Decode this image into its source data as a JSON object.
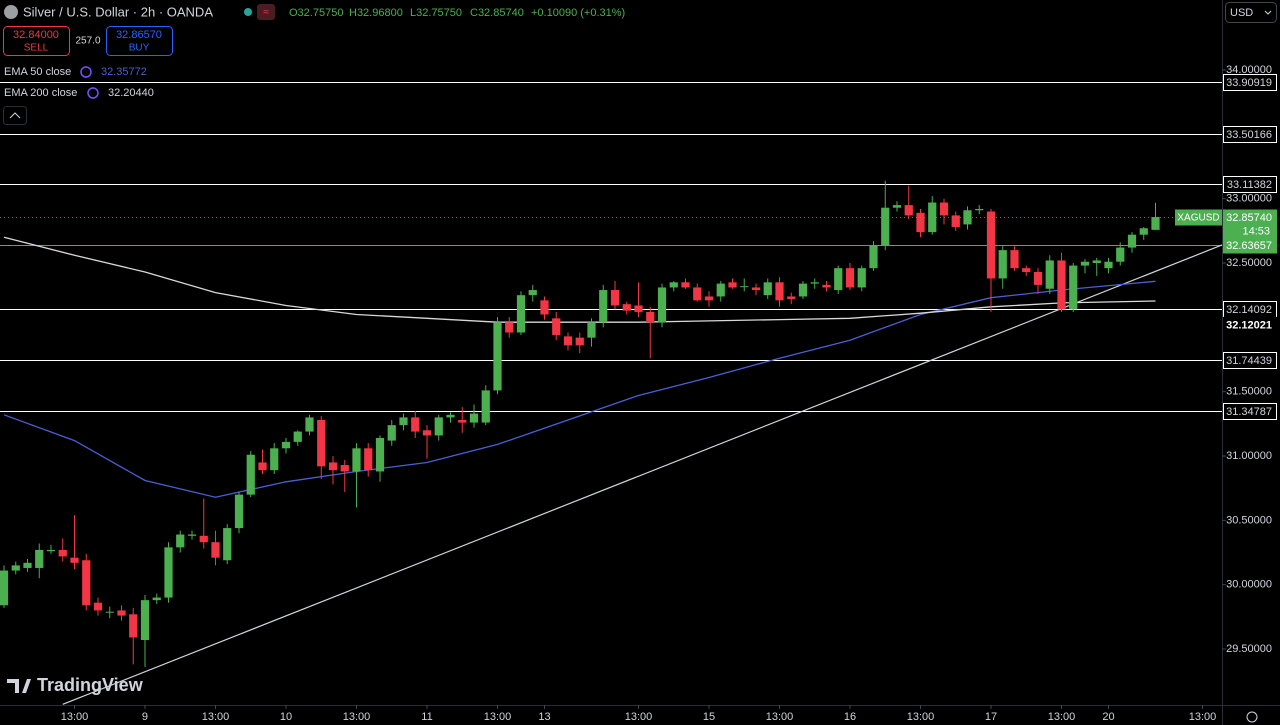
{
  "header": {
    "title": "Silver / U.S. Dollar · 2h · OANDA",
    "open": "O32.75750",
    "high": "H32.96800",
    "low": "L32.75750",
    "close": "C32.85740",
    "change": "+0.10090 (+0.31%)"
  },
  "trade": {
    "sell_price": "32.84000",
    "sell": "SELL",
    "spread": "257.0",
    "buy_price": "32.86570",
    "buy": "BUY"
  },
  "currency": "USD",
  "brand": "TradingView",
  "chart_data": {
    "type": "candlestick",
    "xlim": [
      -0.34,
      103.66
    ],
    "ylim": [
      29.065,
      34.544
    ],
    "grid": false,
    "up_color": "#4caf50",
    "down_color": "#f23645",
    "yticks": [
      {
        "value": 29.5,
        "label": "29.50000"
      },
      {
        "value": 30,
        "label": "30.00000"
      },
      {
        "value": 30.5,
        "label": "30.50000"
      },
      {
        "value": 31,
        "label": "31.00000"
      },
      {
        "value": 31.5,
        "label": "31.50000"
      },
      {
        "value": 32.5,
        "label": "32.50000"
      },
      {
        "value": 33,
        "label": "33.00000"
      },
      {
        "value": 34,
        "label": "34.00000"
      }
    ],
    "xticks": [
      {
        "value": 6,
        "label": "13:00"
      },
      {
        "value": 12,
        "label": "9"
      },
      {
        "value": 18,
        "label": "13:00"
      },
      {
        "value": 24,
        "label": "10"
      },
      {
        "value": 30,
        "label": "13:00"
      },
      {
        "value": 36,
        "label": "11"
      },
      {
        "value": 42,
        "label": "13:00"
      },
      {
        "value": 46,
        "label": "13"
      },
      {
        "value": 54,
        "label": "13:00"
      },
      {
        "value": 60,
        "label": "15"
      },
      {
        "value": 66,
        "label": "13:00"
      },
      {
        "value": 72,
        "label": "16"
      },
      {
        "value": 78,
        "label": "13:00"
      },
      {
        "value": 84,
        "label": "17"
      },
      {
        "value": 90,
        "label": "13:00"
      },
      {
        "value": 94,
        "label": "20"
      },
      {
        "value": 102,
        "label": "13:00"
      }
    ],
    "ohlc": [
      [
        29.84,
        30.15,
        29.82,
        30.11
      ],
      [
        30.11,
        30.18,
        30.08,
        30.15
      ],
      [
        30.13,
        30.2,
        30.1,
        30.17
      ],
      [
        30.13,
        30.32,
        30.05,
        30.27
      ],
      [
        30.26,
        30.31,
        30.24,
        30.27
      ],
      [
        30.27,
        30.36,
        30.18,
        30.22
      ],
      [
        30.21,
        30.54,
        30.12,
        30.17
      ],
      [
        30.19,
        30.24,
        29.8,
        29.84
      ],
      [
        29.86,
        29.9,
        29.76,
        29.8
      ],
      [
        29.79,
        29.83,
        29.74,
        29.79
      ],
      [
        29.8,
        29.84,
        29.72,
        29.76
      ],
      [
        29.77,
        29.82,
        29.38,
        29.59
      ],
      [
        29.57,
        29.92,
        29.36,
        29.88
      ],
      [
        29.88,
        29.93,
        29.85,
        29.9
      ],
      [
        29.9,
        30.33,
        29.86,
        30.29
      ],
      [
        30.29,
        30.42,
        30.25,
        30.39
      ],
      [
        30.38,
        30.42,
        30.35,
        30.39
      ],
      [
        30.38,
        30.67,
        30.28,
        30.33
      ],
      [
        30.33,
        30.42,
        30.15,
        30.21
      ],
      [
        30.19,
        30.47,
        30.16,
        30.44
      ],
      [
        30.44,
        30.72,
        30.4,
        30.7
      ],
      [
        30.7,
        31.04,
        30.68,
        31.01
      ],
      [
        30.95,
        31.05,
        30.86,
        30.89
      ],
      [
        30.89,
        31.1,
        30.86,
        31.06
      ],
      [
        31.06,
        31.14,
        31.02,
        31.11
      ],
      [
        31.11,
        31.2,
        31.08,
        31.19
      ],
      [
        31.19,
        31.32,
        31.16,
        31.3
      ],
      [
        31.28,
        31.31,
        30.82,
        30.92
      ],
      [
        30.95,
        31.0,
        30.78,
        30.89
      ],
      [
        30.93,
        30.97,
        30.72,
        30.88
      ],
      [
        30.88,
        31.1,
        30.6,
        31.06
      ],
      [
        31.06,
        31.1,
        30.84,
        30.89
      ],
      [
        30.88,
        31.16,
        30.8,
        31.14
      ],
      [
        31.12,
        31.28,
        31.08,
        31.24
      ],
      [
        31.24,
        31.33,
        31.2,
        31.3
      ],
      [
        31.3,
        31.35,
        31.14,
        31.19
      ],
      [
        31.2,
        31.24,
        30.98,
        31.16
      ],
      [
        31.16,
        31.32,
        31.12,
        31.3
      ],
      [
        31.3,
        31.34,
        31.26,
        31.32
      ],
      [
        31.28,
        31.38,
        31.18,
        31.26
      ],
      [
        31.26,
        31.4,
        31.22,
        31.33
      ],
      [
        31.26,
        31.55,
        31.24,
        31.51
      ],
      [
        31.51,
        32.08,
        31.48,
        32.04
      ],
      [
        32.04,
        32.08,
        31.92,
        31.96
      ],
      [
        31.96,
        32.28,
        31.94,
        32.25
      ],
      [
        32.25,
        32.33,
        32.2,
        32.29
      ],
      [
        32.21,
        32.24,
        32.06,
        32.1
      ],
      [
        32.07,
        32.12,
        31.9,
        31.94
      ],
      [
        31.93,
        31.96,
        31.82,
        31.86
      ],
      [
        31.92,
        31.96,
        31.8,
        31.86
      ],
      [
        31.92,
        32.07,
        31.85,
        32.04
      ],
      [
        32.04,
        32.33,
        32.0,
        32.29
      ],
      [
        32.29,
        32.36,
        32.14,
        32.17
      ],
      [
        32.18,
        32.2,
        32.1,
        32.13
      ],
      [
        32.17,
        32.35,
        32.08,
        32.12
      ],
      [
        32.12,
        32.16,
        31.76,
        32.04
      ],
      [
        32.04,
        32.34,
        32.0,
        32.31
      ],
      [
        32.31,
        32.36,
        32.28,
        32.35
      ],
      [
        32.35,
        32.38,
        32.3,
        32.31
      ],
      [
        32.31,
        32.34,
        32.2,
        32.21
      ],
      [
        32.24,
        32.28,
        32.16,
        32.21
      ],
      [
        32.24,
        32.36,
        32.2,
        32.34
      ],
      [
        32.35,
        32.38,
        32.3,
        32.31
      ],
      [
        32.32,
        32.38,
        32.28,
        32.32
      ],
      [
        32.31,
        32.34,
        32.25,
        32.29
      ],
      [
        32.25,
        32.38,
        32.22,
        32.35
      ],
      [
        32.35,
        32.39,
        32.16,
        32.21
      ],
      [
        32.24,
        32.27,
        32.18,
        32.22
      ],
      [
        32.24,
        32.36,
        32.22,
        32.34
      ],
      [
        32.34,
        32.38,
        32.3,
        32.35
      ],
      [
        32.33,
        32.36,
        32.28,
        32.31
      ],
      [
        32.29,
        32.48,
        32.26,
        32.46
      ],
      [
        32.46,
        32.5,
        32.29,
        32.31
      ],
      [
        32.31,
        32.48,
        32.28,
        32.46
      ],
      [
        32.46,
        32.67,
        32.44,
        32.64
      ],
      [
        32.64,
        33.14,
        32.6,
        32.93
      ],
      [
        32.93,
        32.98,
        32.9,
        32.95
      ],
      [
        32.95,
        33.1,
        32.84,
        32.87
      ],
      [
        32.89,
        32.92,
        32.7,
        32.74
      ],
      [
        32.74,
        33.02,
        32.72,
        32.97
      ],
      [
        32.97,
        33.0,
        32.8,
        32.87
      ],
      [
        32.87,
        32.9,
        32.75,
        32.78
      ],
      [
        32.8,
        32.94,
        32.76,
        32.91
      ],
      [
        32.91,
        32.95,
        32.88,
        32.92
      ],
      [
        32.9,
        32.92,
        32.12,
        32.38
      ],
      [
        32.38,
        32.64,
        32.3,
        32.6
      ],
      [
        32.6,
        32.63,
        32.44,
        32.46
      ],
      [
        32.46,
        32.48,
        32.4,
        32.43
      ],
      [
        32.43,
        32.46,
        32.26,
        32.33
      ],
      [
        32.3,
        32.56,
        32.26,
        32.52
      ],
      [
        32.52,
        32.58,
        32.12,
        32.14
      ],
      [
        32.14,
        32.5,
        32.12,
        32.48
      ],
      [
        32.48,
        32.53,
        32.42,
        32.51
      ],
      [
        32.5,
        32.54,
        32.4,
        32.52
      ],
      [
        32.46,
        32.54,
        32.42,
        32.51
      ],
      [
        32.51,
        32.66,
        32.48,
        32.62
      ],
      [
        32.62,
        32.74,
        32.58,
        32.72
      ],
      [
        32.72,
        32.78,
        32.68,
        32.77
      ],
      [
        32.7575,
        32.968,
        32.7575,
        32.8574
      ]
    ],
    "series": [
      {
        "name": "EMA 50 close",
        "last_label": "32.35772",
        "color": "#4a5fd6",
        "x": [
          0,
          6,
          12,
          18,
          24,
          30,
          36,
          42,
          48,
          54,
          60,
          66,
          72,
          78,
          84,
          90,
          98
        ],
        "values": [
          31.32,
          31.12,
          30.81,
          30.68,
          30.8,
          30.88,
          30.95,
          31.09,
          31.28,
          31.47,
          31.61,
          31.76,
          31.9,
          32.1,
          32.23,
          32.29,
          32.358
        ]
      },
      {
        "name": "EMA 200 close",
        "last_label": "32.20440",
        "color": "#d8d8d8",
        "x": [
          0,
          6,
          12,
          18,
          24,
          30,
          36,
          42,
          48,
          54,
          60,
          66,
          72,
          78,
          84,
          90,
          98
        ],
        "values": [
          32.7,
          32.56,
          32.43,
          32.27,
          32.17,
          32.1,
          32.07,
          32.04,
          32.04,
          32.04,
          32.05,
          32.06,
          32.07,
          32.11,
          32.16,
          32.19,
          32.2044
        ]
      }
    ],
    "trendline": {
      "x": [
        5,
        103.66
      ],
      "values": [
        29.07,
        32.64
      ],
      "color": "#d1d4dc"
    },
    "levels": [
      33.90919,
      33.50166,
      33.11382,
      32.14092,
      31.74439,
      31.34787
    ],
    "level_color": "#ffffff",
    "pivot": {
      "value": 32.63657,
      "color": "#4caf50"
    },
    "last_price": {
      "symbol": "XAGUSD",
      "value": 32.8574,
      "label": "32.85740",
      "countdown": "14:53",
      "color": "#4caf50"
    },
    "marker_price": 32.12021
  }
}
